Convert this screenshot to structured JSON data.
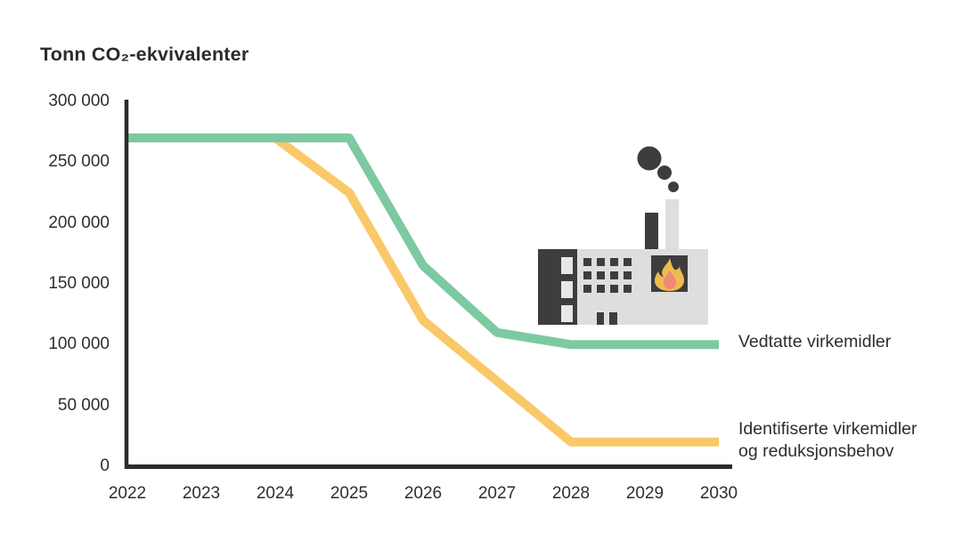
{
  "page": {
    "background": "#ffffff"
  },
  "title": "Tonn CO₂-ekvivalenter",
  "chart_data": {
    "type": "line",
    "title": "Tonn CO₂-ekvivalenter",
    "x": [
      2022,
      2023,
      2024,
      2025,
      2026,
      2027,
      2028,
      2029,
      2030
    ],
    "x_tick_labels": [
      "2022",
      "2023",
      "2024",
      "2025",
      "2026",
      "2027",
      "2028",
      "2029",
      "2030"
    ],
    "y_ticks": [
      0,
      50000,
      100000,
      150000,
      200000,
      250000,
      300000
    ],
    "y_tick_labels": [
      "0",
      "50 000",
      "100 000",
      "150 000",
      "200 000",
      "250 000",
      "300 000"
    ],
    "ylim": [
      0,
      300000
    ],
    "xlabel": "",
    "ylabel": "Tonn CO₂-ekvivalenter",
    "grid": false,
    "legend_position": "right-of-line-ends",
    "series": [
      {
        "name": "Vedtatte virkemidler",
        "color": "#7dc9a2",
        "values": [
          270000,
          270000,
          270000,
          270000,
          165000,
          110000,
          100000,
          100000,
          100000
        ]
      },
      {
        "name": "Identifiserte virkemidler og reduksjonsbehov",
        "color": "#f9c868",
        "values": [
          270000,
          270000,
          270000,
          225000,
          120000,
          70000,
          20000,
          20000,
          20000
        ]
      }
    ]
  },
  "legend": {
    "vedtatte_label": "Vedtatte virkemidler",
    "identifiserte_line1": "Identifiserte virkemidler",
    "identifiserte_line2": "og reduksjonsbehov"
  },
  "illustration": {
    "name": "factory-with-chimney-smoke-and-flame",
    "colors": {
      "dark": "#3d3d3d",
      "light": "#dedede",
      "window_light": "#e7e7e7",
      "flame_outer": "#f0bb4d",
      "flame_inner": "#ef8878"
    }
  },
  "axis": {
    "line_color": "#2b2b2b",
    "text_color": "#2e2e2e"
  }
}
